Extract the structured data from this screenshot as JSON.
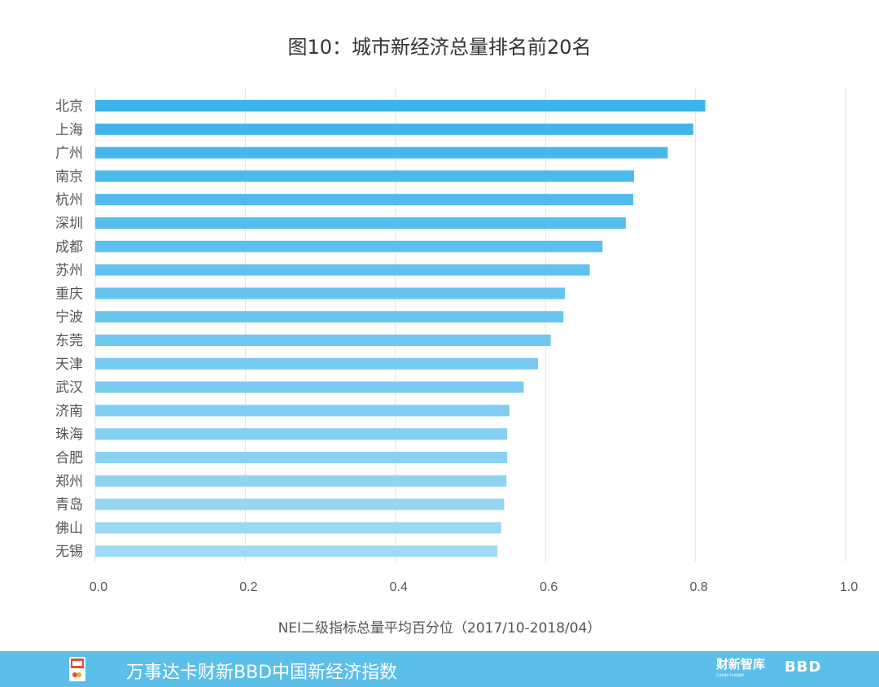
{
  "chart_data": {
    "type": "bar",
    "orientation": "horizontal",
    "title": "图10：城市新经济总量排名前20名",
    "xlabel": "NEI二级指标总量平均百分位（2017/10-2018/04）",
    "ylabel": "",
    "xlim": [
      0.0,
      1.0
    ],
    "xticks": [
      "0.0",
      "0.2",
      "0.4",
      "0.6",
      "0.8",
      "1.0"
    ],
    "grid": "vertical",
    "categories": [
      "北京",
      "上海",
      "广州",
      "南京",
      "杭州",
      "深圳",
      "成都",
      "苏州",
      "重庆",
      "宁波",
      "东莞",
      "天津",
      "武汉",
      "济南",
      "珠海",
      "合肥",
      "郑州",
      "青岛",
      "佛山",
      "无锡"
    ],
    "values": [
      0.813,
      0.797,
      0.763,
      0.718,
      0.717,
      0.707,
      0.676,
      0.659,
      0.626,
      0.624,
      0.607,
      0.59,
      0.571,
      0.552,
      0.549,
      0.549,
      0.548,
      0.545,
      0.541,
      0.536
    ],
    "colors": {
      "bar_top": "#3bb4ea",
      "bar_bottom": "#9fdaf5",
      "grid": "#e3e3e3",
      "tick_text": "#555555"
    }
  },
  "footer": {
    "text": "万事达卡财新BBD中国新经济指数",
    "brand1": "财新智库",
    "brand1_sub": "Caixin Insight",
    "brand2": "BBD",
    "logo_icon": "nei-logo-icon",
    "background": "#5bbfea"
  }
}
